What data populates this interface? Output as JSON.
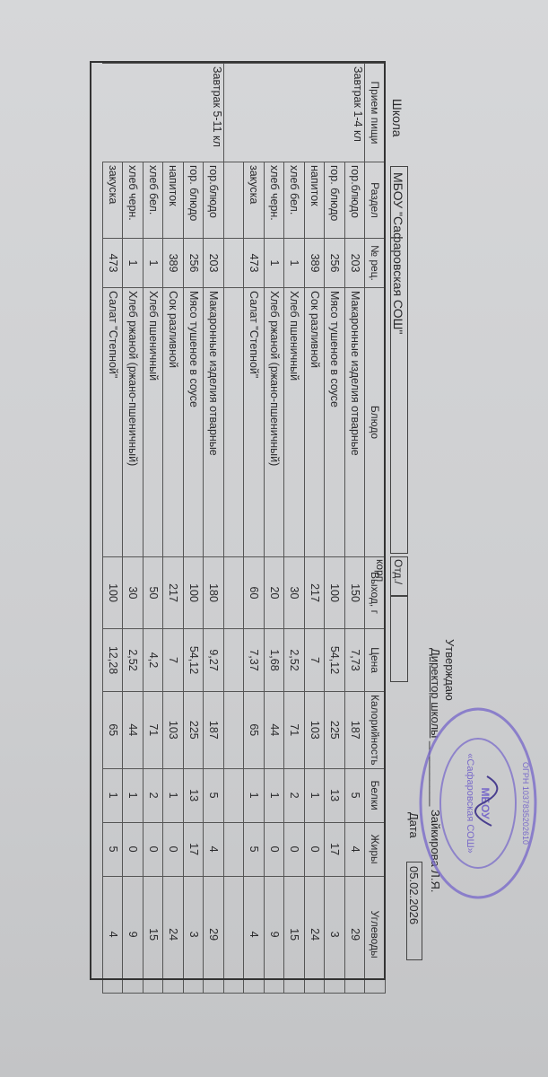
{
  "header": {
    "school_label": "Школа",
    "school_name": "МБОУ \"Сафаровская СОШ\"",
    "dept_label": "Отд./корп",
    "approve": "Утверждаю",
    "director_label": "Директор школы",
    "director_name": "Зайкирова Л.Я.",
    "date_label": "Дата",
    "date": "05.02.2026"
  },
  "stamp": {
    "text": "МБОУ «Сафаровская СОШ» ОГРН 1037835202610",
    "color": "#7a6bc9"
  },
  "table": {
    "columns": [
      "Прием пищи",
      "Раздел",
      "№ рец.",
      "Блюдо",
      "Выход, г",
      "Цена",
      "Калорийность",
      "Белки",
      "Жиры",
      "Углеводы"
    ],
    "groups": [
      {
        "meal": "Завтрак 1-4 кл",
        "rows": [
          [
            "гор.блюдо",
            "203",
            "Макаронные изделия отварные",
            "150",
            "7,73",
            "187",
            "5",
            "4",
            "29"
          ],
          [
            "гор. блюдо",
            "256",
            "Мясо тушеное в соусе",
            "100",
            "54,12",
            "225",
            "13",
            "17",
            "3"
          ],
          [
            "напиток",
            "389",
            "Сок разливной",
            "217",
            "7",
            "103",
            "1",
            "0",
            "24"
          ],
          [
            "хлеб бел.",
            "1",
            "Хлеб пшеничный",
            "30",
            "2,52",
            "71",
            "2",
            "0",
            "15"
          ],
          [
            "хлеб черн.",
            "1",
            "Хлеб ржаной (ржано-пшеничный)",
            "20",
            "1,68",
            "44",
            "1",
            "0",
            "9"
          ],
          [
            "закуска",
            "473",
            "Салат \"Степной\"",
            "60",
            "7,37",
            "65",
            "1",
            "5",
            "4"
          ]
        ]
      },
      {
        "meal": "Завтрак 5-11 кл",
        "rows": [
          [
            "гор.блюдо",
            "203",
            "Макаронные изделия отварные",
            "180",
            "9,27",
            "187",
            "5",
            "4",
            "29"
          ],
          [
            "гор. блюдо",
            "256",
            "Мясо тушеное в соусе",
            "100",
            "54,12",
            "225",
            "13",
            "17",
            "3"
          ],
          [
            "напиток",
            "389",
            "Сок разливной",
            "217",
            "7",
            "103",
            "1",
            "0",
            "24"
          ],
          [
            "хлеб бел.",
            "1",
            "Хлеб пшеничный",
            "50",
            "4,2",
            "71",
            "2",
            "0",
            "15"
          ],
          [
            "хлеб черн.",
            "1",
            "Хлеб ржаной (ржано-пшеничный)",
            "30",
            "2,52",
            "44",
            "1",
            "0",
            "9"
          ],
          [
            "закуска",
            "473",
            "Салат \"Степной\"",
            "100",
            "12,28",
            "65",
            "1",
            "5",
            "4"
          ]
        ]
      }
    ]
  }
}
